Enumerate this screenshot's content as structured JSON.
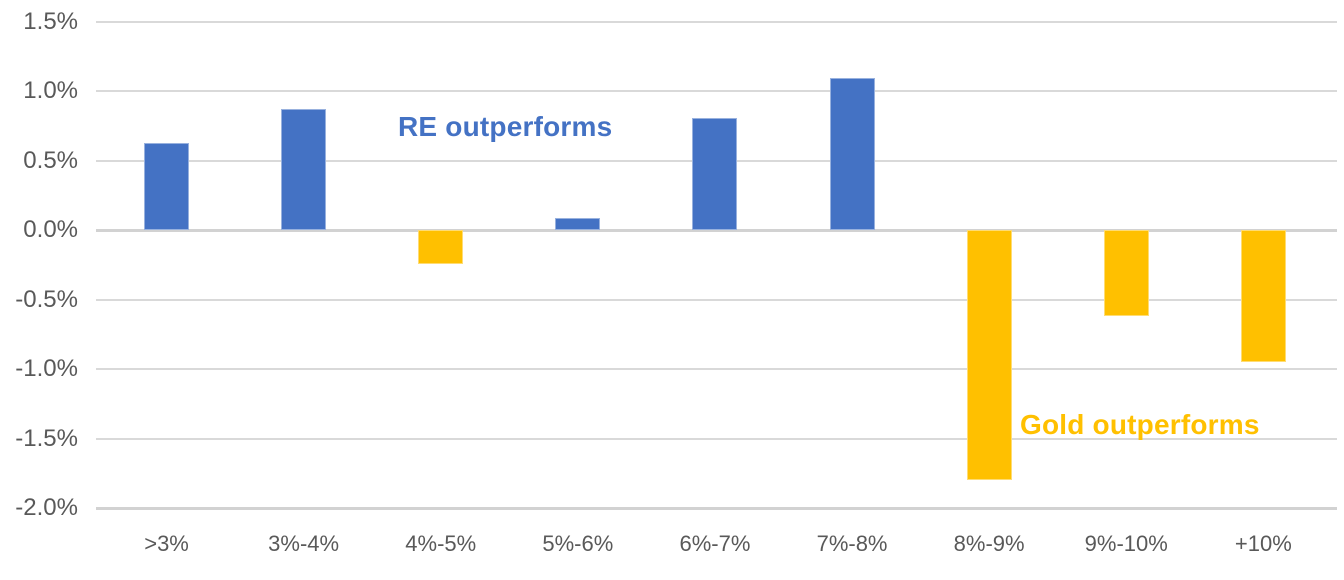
{
  "chart_data": {
    "type": "bar",
    "title": "",
    "xlabel": "",
    "ylabel": "",
    "categories": [
      ">3%",
      "3%-4%",
      "4%-5%",
      "5%-6%",
      "6%-7%",
      "7%-8%",
      "8%-9%",
      "9%-10%",
      "+10%"
    ],
    "values": [
      0.63,
      0.87,
      -0.24,
      0.09,
      0.81,
      1.1,
      -1.8,
      -0.62,
      -0.95
    ],
    "value_unit": "%",
    "ylim": [
      -2.0,
      1.5
    ],
    "y_tick_step": 0.5,
    "y_tick_labels": [
      "1.5%",
      "1.0%",
      "0.5%",
      "0.0%",
      "-0.5%",
      "-1.0%",
      "-1.5%",
      "-2.0%"
    ],
    "grid": "horizontal",
    "legend_position": "none",
    "colors": {
      "positive_bar": "#4472C4",
      "negative_bar": "#FFC000",
      "gridline": "#D9D9D9",
      "tick_label": "#595959"
    },
    "annotations": [
      {
        "text": "RE outperforms",
        "color": "#4472C4"
      },
      {
        "text": "Gold outperforms",
        "color": "#FFC000"
      }
    ]
  }
}
